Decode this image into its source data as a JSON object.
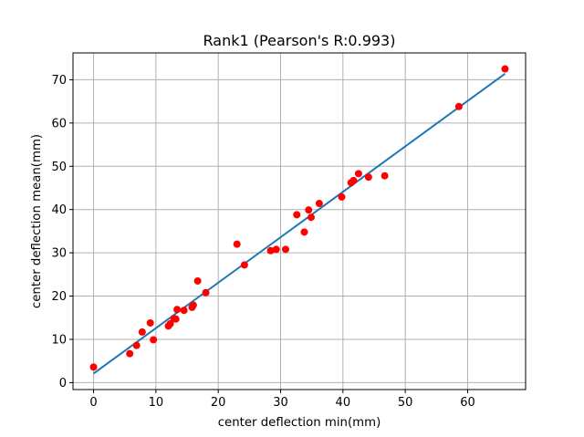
{
  "chart_data": {
    "type": "scatter",
    "title": "Rank1 (Pearson's R:0.993)",
    "xlabel": "center deflection min(mm)",
    "ylabel": "center deflection mean(mm)",
    "xlim": [
      -3.3,
      69.3
    ],
    "ylim": [
      -1.6,
      76.2
    ],
    "xticks": [
      0,
      10,
      20,
      30,
      40,
      50,
      60
    ],
    "yticks": [
      0,
      10,
      20,
      30,
      40,
      50,
      60,
      70
    ],
    "grid": true,
    "colors": {
      "points": "#ff0000",
      "fit_line": "#1f77b4",
      "grid": "#b0b0b0"
    },
    "series": [
      {
        "kind": "points",
        "x": [
          0,
          5.8,
          6.9,
          7.8,
          9.1,
          9.6,
          12.0,
          12.3,
          12.9,
          13.2,
          13.4,
          14.5,
          15.8,
          16.0,
          16.7,
          18.0,
          23.0,
          24.2,
          28.4,
          29.3,
          30.8,
          32.6,
          33.8,
          34.5,
          34.9,
          36.2,
          39.8,
          41.3,
          41.7,
          42.5,
          44.1,
          46.7,
          58.6,
          66.0
        ],
        "y": [
          3.6,
          6.7,
          8.6,
          11.7,
          13.8,
          9.9,
          13.1,
          13.6,
          14.8,
          14.7,
          16.9,
          16.7,
          17.4,
          17.9,
          23.5,
          20.8,
          32.0,
          27.2,
          30.5,
          30.8,
          30.8,
          38.8,
          34.8,
          39.9,
          38.2,
          41.4,
          42.9,
          46.2,
          46.7,
          48.3,
          47.5,
          47.8,
          63.8,
          72.5
        ]
      },
      {
        "kind": "fit-line",
        "x": [
          0,
          66.0
        ],
        "y": [
          2.1,
          71.4
        ]
      }
    ]
  }
}
